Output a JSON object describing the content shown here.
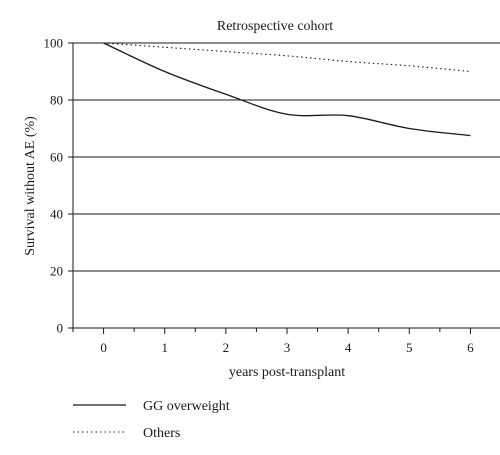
{
  "chart_data": {
    "type": "line",
    "title": "Retrospective cohort",
    "xlabel": "years post-transplant",
    "ylabel": "Survival without AE (%)",
    "x": [
      0,
      1,
      2,
      3,
      4,
      5,
      6
    ],
    "x_ticks": [
      "0",
      "1",
      "2",
      "3",
      "4",
      "5",
      "6"
    ],
    "y_ticks": [
      "0",
      "20",
      "40",
      "60",
      "80",
      "100"
    ],
    "xlim": [
      -0.5,
      6.5
    ],
    "ylim": [
      0,
      100
    ],
    "grid": "horizontal",
    "legend_position": "bottom-left",
    "series": [
      {
        "name": "GG overweight",
        "style": "solid",
        "color": "#1a1a1a",
        "points": [
          [
            0,
            100
          ],
          [
            1,
            90
          ],
          [
            2,
            82
          ],
          [
            3,
            75
          ],
          [
            4,
            74.5
          ],
          [
            5,
            70
          ],
          [
            6,
            67.5
          ]
        ]
      },
      {
        "name": "Others",
        "style": "dotted",
        "color": "#1a1a1a",
        "points": [
          [
            0,
            100
          ],
          [
            1,
            98.5
          ],
          [
            2,
            97
          ],
          [
            3,
            95.5
          ],
          [
            4,
            93.5
          ],
          [
            5,
            92
          ],
          [
            6,
            90
          ]
        ]
      }
    ]
  }
}
